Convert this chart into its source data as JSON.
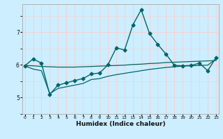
{
  "title": "",
  "xlabel": "Humidex (Indice chaleur)",
  "background_color": "#cceeff",
  "grid_color": "#ffcccc",
  "line_color": "#006666",
  "x_ticks": [
    0,
    1,
    2,
    3,
    4,
    5,
    6,
    7,
    8,
    9,
    10,
    11,
    12,
    13,
    14,
    15,
    16,
    17,
    18,
    19,
    20,
    21,
    22,
    23
  ],
  "y_ticks": [
    5,
    6,
    7
  ],
  "ylim": [
    4.65,
    7.85
  ],
  "xlim": [
    -0.3,
    23.3
  ],
  "series": [
    {
      "x": [
        0,
        1,
        2,
        3,
        4,
        5,
        6,
        7,
        8,
        9,
        10,
        11,
        12,
        13,
        14,
        15,
        16,
        17,
        18,
        19,
        20,
        21,
        22,
        23
      ],
      "y": [
        5.97,
        6.18,
        6.05,
        5.1,
        5.38,
        5.45,
        5.52,
        5.58,
        5.72,
        5.75,
        6.0,
        6.52,
        6.45,
        7.22,
        7.68,
        6.95,
        6.62,
        6.32,
        5.98,
        5.97,
        5.98,
        6.05,
        5.82,
        6.22
      ],
      "marker": "D",
      "markersize": 2.5,
      "linewidth": 1.0
    },
    {
      "x": [
        0,
        1,
        2,
        3,
        4,
        5,
        6,
        7,
        8,
        9,
        10,
        11,
        12,
        13,
        14,
        15,
        16,
        17,
        18,
        19,
        20,
        21,
        22,
        23
      ],
      "y": [
        5.98,
        5.97,
        5.95,
        5.94,
        5.93,
        5.93,
        5.93,
        5.94,
        5.95,
        5.96,
        5.97,
        5.98,
        5.99,
        6.01,
        6.02,
        6.04,
        6.05,
        6.07,
        6.08,
        6.09,
        6.1,
        6.11,
        6.12,
        6.13
      ],
      "marker": null,
      "linewidth": 0.9
    },
    {
      "x": [
        0,
        1,
        2,
        3,
        4,
        5,
        6,
        7,
        8,
        9,
        10,
        11,
        12,
        13,
        14,
        15,
        16,
        17,
        18,
        19,
        20,
        21,
        22,
        23
      ],
      "y": [
        5.97,
        5.87,
        5.82,
        5.12,
        5.28,
        5.33,
        5.38,
        5.43,
        5.55,
        5.58,
        5.65,
        5.7,
        5.74,
        5.78,
        5.82,
        5.86,
        5.89,
        5.92,
        5.94,
        5.96,
        5.97,
        5.98,
        5.99,
        6.18
      ],
      "marker": null,
      "linewidth": 0.9
    }
  ]
}
